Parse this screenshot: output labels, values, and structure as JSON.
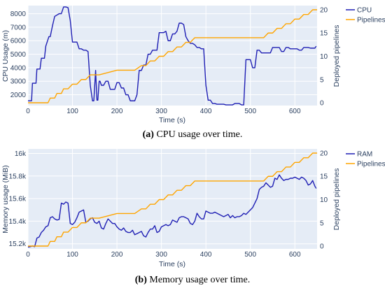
{
  "colors": {
    "plot_bg": "#E5ECF6",
    "grid": "#ffffff",
    "cpu": "#1f1fb4",
    "ram": "#1f1fb4",
    "pipelines": "#FFA500",
    "text": "#2a3f5f"
  },
  "chart_data": [
    {
      "type": "line",
      "id": "a",
      "caption": {
        "label": "(a)",
        "text": " CPU usage over time."
      },
      "xlabel": "Time (s)",
      "ylabel": "CPU Usage (m)",
      "y2label": "Deployed pipelines",
      "xlim": [
        0,
        650
      ],
      "ylim": [
        1200,
        8600
      ],
      "y2lim": [
        -0.6,
        20.9
      ],
      "xticks": [
        0,
        100,
        200,
        300,
        400,
        500,
        600
      ],
      "yticks": [
        2000,
        3000,
        4000,
        5000,
        6000,
        7000,
        8000
      ],
      "y2ticks": [
        0,
        5,
        10,
        15,
        20
      ],
      "grid": true,
      "legend_position": "top-right",
      "series": [
        {
          "name": "CPU",
          "axis": "y",
          "x": [
            0,
            8,
            10,
            18,
            20,
            27,
            30,
            37,
            40,
            47,
            50,
            55,
            60,
            70,
            75,
            80,
            85,
            90,
            95,
            100,
            105,
            110,
            115,
            120,
            125,
            130,
            135,
            140,
            145,
            148,
            152,
            155,
            157,
            160,
            162,
            165,
            170,
            175,
            180,
            185,
            190,
            195,
            200,
            205,
            210,
            215,
            220,
            225,
            230,
            240,
            245,
            250,
            255,
            260,
            265,
            270,
            275,
            280,
            285,
            290,
            295,
            300,
            305,
            310,
            315,
            320,
            325,
            330,
            335,
            340,
            345,
            350,
            355,
            360,
            365,
            370,
            375,
            380,
            385,
            390,
            395,
            400,
            405,
            410,
            415,
            420,
            425,
            440,
            445,
            460,
            465,
            475,
            480,
            485,
            490,
            495,
            500,
            505,
            510,
            515,
            520,
            525,
            530,
            535,
            540,
            545,
            550,
            555,
            560,
            565,
            570,
            575,
            580,
            585,
            590,
            595,
            600,
            605,
            610,
            615,
            620,
            625,
            630,
            635,
            640,
            645,
            648
          ],
          "y": [
            1550,
            1550,
            2850,
            2850,
            3900,
            3900,
            4700,
            4700,
            5600,
            6300,
            6300,
            7100,
            7800,
            8000,
            8000,
            8500,
            8500,
            8450,
            7500,
            5900,
            5900,
            5900,
            5400,
            5400,
            5300,
            5300,
            5200,
            2700,
            1550,
            1550,
            3800,
            1600,
            1600,
            3000,
            3000,
            2700,
            2700,
            3000,
            3000,
            2400,
            2400,
            2400,
            2900,
            2900,
            2500,
            2500,
            2000,
            2000,
            1550,
            1550,
            2000,
            3800,
            3800,
            4200,
            4200,
            5000,
            5000,
            5300,
            5300,
            5300,
            6600,
            6600,
            6600,
            6700,
            6000,
            6000,
            6500,
            6500,
            6700,
            7300,
            7300,
            7200,
            6300,
            6000,
            5800,
            5800,
            5700,
            5500,
            5500,
            5400,
            5400,
            2700,
            1600,
            1600,
            1350,
            1350,
            1300,
            1300,
            1250,
            1250,
            1350,
            1350,
            1250,
            1250,
            4600,
            4600,
            4600,
            4000,
            4000,
            5300,
            5300,
            5100,
            5100,
            5100,
            5100,
            5100,
            5500,
            5500,
            5500,
            5500,
            5200,
            5200,
            5500,
            5500,
            5400,
            5400,
            5400,
            5400,
            5300,
            5300,
            5500,
            5500,
            5500,
            5450,
            5450,
            5450,
            5600
          ]
        },
        {
          "name": "Pipelines",
          "axis": "y2",
          "x": [
            0,
            45,
            50,
            60,
            65,
            75,
            80,
            90,
            100,
            110,
            120,
            130,
            140,
            150,
            160,
            200,
            240,
            255,
            265,
            275,
            285,
            295,
            305,
            315,
            325,
            335,
            345,
            355,
            365,
            375,
            380,
            530,
            540,
            550,
            560,
            570,
            580,
            590,
            600,
            610,
            620,
            630,
            640,
            650
          ],
          "y": [
            0,
            0,
            1,
            1,
            2,
            2,
            3,
            3,
            4,
            4,
            5,
            5,
            6,
            6,
            6,
            7,
            7,
            8,
            8,
            9,
            9,
            10,
            10,
            11,
            11,
            12,
            12,
            13,
            13,
            14,
            14,
            14,
            15,
            15,
            16,
            16,
            17,
            17,
            18,
            18,
            19,
            19,
            20,
            20
          ]
        }
      ]
    },
    {
      "type": "line",
      "id": "b",
      "caption": {
        "label": "(b)",
        "text": " Memory usage over time."
      },
      "xlabel": "Time (s)",
      "ylabel": "Memory usage (MiB)",
      "y2label": "Deployed pipelines",
      "xlim": [
        0,
        650
      ],
      "ylim": [
        15155,
        16040
      ],
      "y2lim": [
        -0.6,
        20.9
      ],
      "xticks": [
        0,
        100,
        200,
        300,
        400,
        500,
        600
      ],
      "yticks": [
        15200,
        15400,
        15600,
        15800,
        16000
      ],
      "yticklabels": [
        "15.2k",
        "15.4k",
        "15.6k",
        "15.8k",
        "16k"
      ],
      "y2ticks": [
        0,
        5,
        10,
        15,
        20
      ],
      "grid": true,
      "legend_position": "top-right",
      "series": [
        {
          "name": "RAM",
          "axis": "y",
          "x": [
            0,
            5,
            10,
            15,
            20,
            25,
            30,
            35,
            40,
            45,
            50,
            55,
            60,
            65,
            70,
            75,
            80,
            85,
            90,
            95,
            100,
            105,
            110,
            115,
            120,
            125,
            130,
            135,
            140,
            145,
            150,
            155,
            160,
            165,
            170,
            175,
            180,
            185,
            190,
            195,
            200,
            205,
            210,
            215,
            220,
            225,
            230,
            235,
            240,
            245,
            250,
            255,
            260,
            265,
            270,
            275,
            280,
            285,
            290,
            295,
            300,
            305,
            310,
            315,
            320,
            325,
            330,
            335,
            340,
            345,
            350,
            355,
            360,
            365,
            370,
            375,
            380,
            385,
            390,
            395,
            400,
            405,
            410,
            415,
            420,
            425,
            430,
            435,
            440,
            445,
            450,
            455,
            460,
            465,
            470,
            475,
            480,
            485,
            490,
            495,
            500,
            505,
            510,
            515,
            520,
            525,
            530,
            535,
            540,
            545,
            550,
            555,
            560,
            565,
            570,
            575,
            580,
            585,
            590,
            595,
            600,
            605,
            610,
            615,
            620,
            625,
            630,
            635,
            640,
            645,
            648
          ],
          "y": [
            15170,
            15175,
            15180,
            15175,
            15250,
            15260,
            15300,
            15320,
            15350,
            15360,
            15430,
            15440,
            15420,
            15410,
            15415,
            15560,
            15550,
            15570,
            15560,
            15380,
            15370,
            15390,
            15430,
            15480,
            15490,
            15500,
            15390,
            15400,
            15420,
            15430,
            15390,
            15380,
            15400,
            15340,
            15330,
            15380,
            15420,
            15400,
            15380,
            15380,
            15350,
            15330,
            15320,
            15340,
            15310,
            15300,
            15300,
            15320,
            15280,
            15290,
            15300,
            15310,
            15270,
            15260,
            15300,
            15330,
            15330,
            15360,
            15300,
            15310,
            15350,
            15360,
            15370,
            15360,
            15370,
            15410,
            15400,
            15390,
            15430,
            15440,
            15440,
            15430,
            15420,
            15380,
            15370,
            15400,
            15470,
            15440,
            15420,
            15420,
            15490,
            15480,
            15470,
            15470,
            15480,
            15470,
            15460,
            15450,
            15440,
            15450,
            15460,
            15430,
            15450,
            15430,
            15440,
            15440,
            15450,
            15470,
            15460,
            15480,
            15500,
            15520,
            15560,
            15600,
            15680,
            15700,
            15710,
            15740,
            15720,
            15700,
            15710,
            15780,
            15770,
            15810,
            15780,
            15760,
            15770,
            15770,
            15780,
            15780,
            15790,
            15780,
            15770,
            15790,
            15780,
            15760,
            15720,
            15730,
            15760,
            15710,
            15690
          ]
        },
        {
          "name": "Pipelines",
          "axis": "y2",
          "x": [
            0,
            45,
            50,
            60,
            65,
            75,
            80,
            90,
            100,
            110,
            120,
            130,
            140,
            150,
            160,
            200,
            240,
            255,
            265,
            275,
            285,
            295,
            305,
            315,
            325,
            335,
            345,
            355,
            365,
            375,
            380,
            530,
            540,
            550,
            560,
            570,
            580,
            590,
            600,
            610,
            620,
            630,
            640,
            650
          ],
          "y": [
            0,
            0,
            1,
            1,
            2,
            2,
            3,
            3,
            4,
            4,
            5,
            5,
            6,
            6,
            6,
            7,
            7,
            8,
            8,
            9,
            9,
            10,
            10,
            11,
            11,
            12,
            12,
            13,
            13,
            14,
            14,
            14,
            15,
            15,
            16,
            16,
            17,
            17,
            18,
            18,
            19,
            19,
            20,
            20
          ]
        }
      ]
    }
  ]
}
